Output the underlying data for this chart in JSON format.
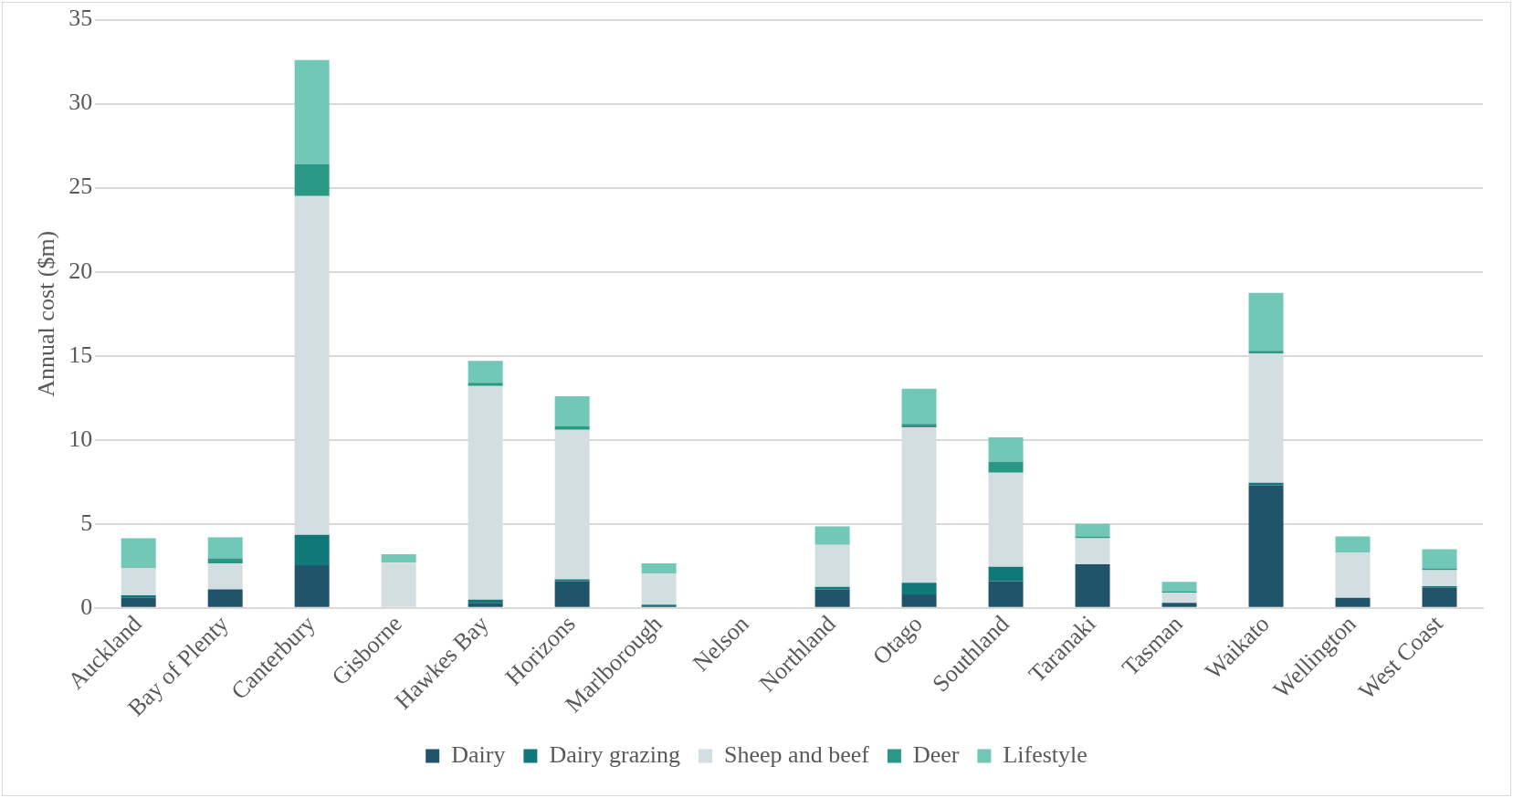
{
  "chart_data": {
    "type": "bar",
    "stacked": true,
    "ylabel": "Annual cost ($m)",
    "categories": [
      "Auckland",
      "Bay of Plenty",
      "Canterbury",
      "Gisborne",
      "Hawkes Bay",
      "Horizons",
      "Marlborough",
      "Nelson",
      "Northland",
      "Otago",
      "Southland",
      "Taranaki",
      "Tasman",
      "Waikato",
      "Wellington",
      "West Coast"
    ],
    "series": [
      {
        "name": "Dairy",
        "color": "#1f546b",
        "values": [
          0.6,
          1.1,
          2.55,
          0,
          0.3,
          1.6,
          0.1,
          0,
          1.1,
          0.8,
          1.6,
          2.6,
          0.3,
          7.3,
          0.6,
          1.2
        ]
      },
      {
        "name": "Dairy grazing",
        "color": "#11787a",
        "values": [
          0.15,
          0,
          1.8,
          0,
          0.2,
          0.1,
          0.1,
          0,
          0.15,
          0.7,
          0.85,
          0,
          0,
          0.15,
          0,
          0.1
        ]
      },
      {
        "name": "Sheep and beef",
        "color": "#d3dee2",
        "values": [
          1.65,
          1.55,
          20.15,
          2.7,
          12.7,
          8.9,
          1.85,
          0,
          2.5,
          9.25,
          5.6,
          1.55,
          0.6,
          7.7,
          2.7,
          0.95
        ]
      },
      {
        "name": "Deer",
        "color": "#2b9886",
        "values": [
          0.05,
          0.3,
          1.9,
          0,
          0.2,
          0.2,
          0,
          0,
          0,
          0.2,
          0.65,
          0.1,
          0.1,
          0.15,
          0,
          0.1
        ]
      },
      {
        "name": "Lifestyle",
        "color": "#72c8b7",
        "values": [
          1.7,
          1.25,
          6.2,
          0.5,
          1.3,
          1.8,
          0.6,
          0,
          1.1,
          2.1,
          1.45,
          0.75,
          0.55,
          3.45,
          0.95,
          1.15
        ]
      }
    ],
    "ylim": [
      0,
      35
    ],
    "yticks": [
      0,
      5,
      10,
      15,
      20,
      25,
      30,
      35
    ],
    "grid": "y",
    "legend": "bottom"
  }
}
